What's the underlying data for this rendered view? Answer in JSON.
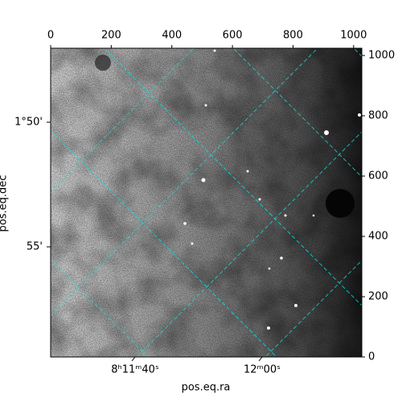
{
  "chart_data": {
    "type": "image",
    "xlabel": "pos.eq.ra",
    "ylabel": "pos.eq.dec",
    "xlim": [
      0,
      1027
    ],
    "ylim": [
      0,
      1024
    ],
    "xticks": [
      0,
      200,
      400,
      600,
      800,
      1000
    ],
    "yticks": [
      0,
      200,
      400,
      600,
      800,
      1000
    ],
    "ra_labels": [
      "8ʰ11ᵐ40ˢ",
      "12ᵐ00ˢ"
    ],
    "dec_labels": [
      "1°50'",
      "55'"
    ],
    "grid_color": "#00e5e5"
  }
}
